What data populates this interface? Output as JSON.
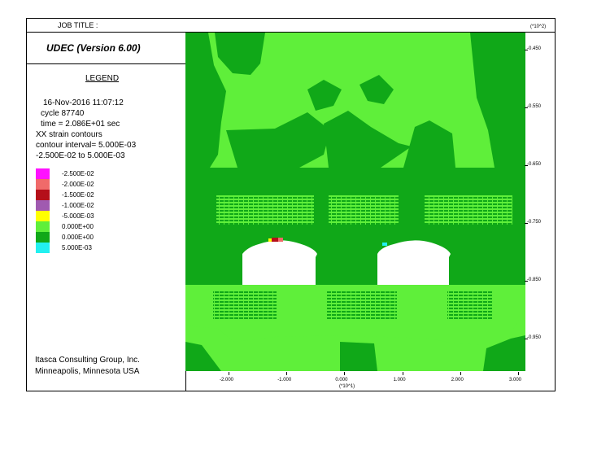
{
  "header": {
    "job_title": "JOB TITLE :"
  },
  "app": {
    "title": "UDEC (Version 6.00)"
  },
  "legend": {
    "heading": "LEGEND",
    "info": [
      "16-Nov-2016  11:07:12",
      "cycle     87740",
      "time  =  2.086E+01 sec",
      "XX strain contours",
      "contour interval= 5.000E-03",
      "-2.500E-02 to  5.000E-03"
    ],
    "entries": [
      {
        "label": "-2.500E-02",
        "color": "#ff11ff"
      },
      {
        "label": "-2.000E-02",
        "color": "#f06a6a"
      },
      {
        "label": "-1.500E-02",
        "color": "#b50f1a"
      },
      {
        "label": "-1.000E-02",
        "color": "#a05ab0"
      },
      {
        "label": "-5.000E-03",
        "color": "#ffff00"
      },
      {
        "label": "0.000E+00",
        "color": "#5fef3a"
      },
      {
        "label": "0.000E+00",
        "color": "#10a818"
      },
      {
        "label": "5.000E-03",
        "color": "#22f0f0"
      }
    ]
  },
  "footer": {
    "line1": "Itasca Consulting Group, Inc.",
    "line2": "Minneapolis, Minnesota  USA"
  },
  "axes": {
    "y_exponent": "(*10^2)",
    "x_exponent": "(*10^1)",
    "y_ticks": [
      "-0.450",
      "-0.550",
      "-0.650",
      "-0.750",
      "-0.850",
      "-0.950"
    ],
    "x_ticks": [
      "-2.000",
      "-1.000",
      "0.000",
      "1.000",
      "2.000",
      "3.000"
    ]
  },
  "colors": {
    "light_green": "#5fef3a",
    "dark_green": "#10a818",
    "excavation": "#ffffff"
  }
}
